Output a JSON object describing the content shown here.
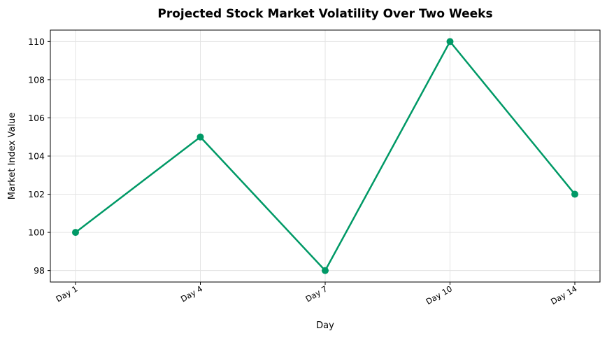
{
  "chart_data": {
    "type": "line",
    "title": "Projected Stock Market Volatility Over Two Weeks",
    "xlabel": "Day",
    "ylabel": "Market Index Value",
    "categories": [
      "Day 1",
      "Day 4",
      "Day 7",
      "Day 10",
      "Day 14"
    ],
    "series": [
      {
        "values": [
          100,
          105,
          98,
          110,
          102
        ]
      }
    ],
    "ylim": [
      97.4,
      110.6
    ],
    "yticks": [
      98,
      100,
      102,
      104,
      106,
      108,
      110
    ],
    "grid": true,
    "line_color": "#009966",
    "marker": "circle"
  }
}
